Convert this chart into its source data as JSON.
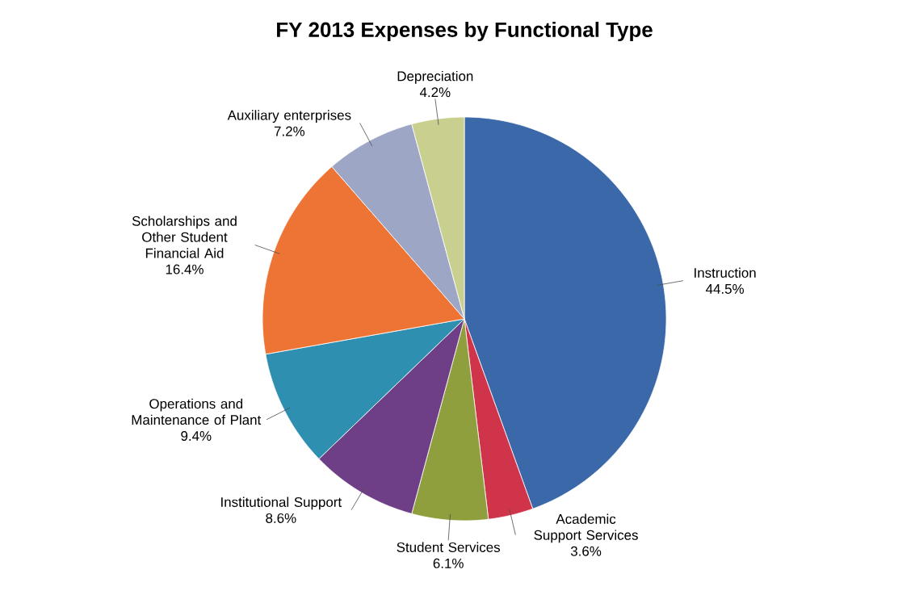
{
  "chart_data": {
    "type": "pie",
    "title": "FY 2013 Expenses by Functional Type",
    "categories": [
      "Instruction",
      "Academic Support Services",
      "Student Services",
      "Institutional Support",
      "Operations and Maintenance of Plant",
      "Scholarships and Other Student Financial Aid",
      "Auxiliary enterprises",
      "Depreciation"
    ],
    "values": [
      44.5,
      3.6,
      6.1,
      8.6,
      9.4,
      16.4,
      7.2,
      4.2
    ],
    "colors": [
      "#3b68a8",
      "#d0344a",
      "#8f9f3e",
      "#6e3f86",
      "#2f8fb0",
      "#ee7436",
      "#9ea6c6",
      "#c9d08f"
    ],
    "value_labels": [
      "44.5%",
      "3.6%",
      "6.1%",
      "8.6%",
      "9.4%",
      "16.4%",
      "7.2%",
      "4.2%"
    ]
  }
}
